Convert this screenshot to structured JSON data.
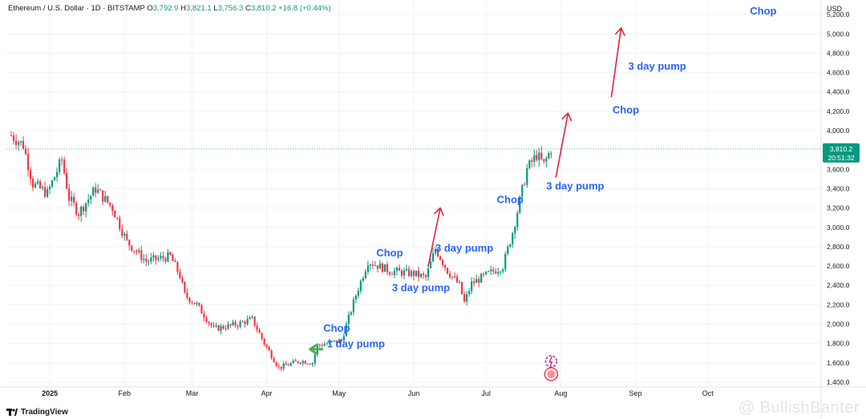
{
  "header": {
    "symbol": "Ethereum / U.S. Dollar · 1D · BITSTAMP",
    "o_label": "O",
    "o": "3,792.9",
    "h_label": "H",
    "h": "3,821.1",
    "l_label": "L",
    "l": "3,756.3",
    "c_label": "C",
    "c": "3,810.2",
    "change": "+16.8 (+0.44%)"
  },
  "currency": "USD",
  "price_badge": {
    "price": "3,810.2",
    "countdown": "20:51:32"
  },
  "branding": {
    "logo_text": "TradingView",
    "watermark": "@ BullishBanter"
  },
  "colors": {
    "up": "#089981",
    "down": "#f23645",
    "annotation_text": "#2962ff",
    "arrow_red": "#e3203a",
    "arrow_green": "#4caf50"
  },
  "chart_data": {
    "type": "candlestick",
    "yaxis_ticks": [
      "1,400.0",
      "1,600.0",
      "1,800.0",
      "2,000.0",
      "2,200.0",
      "2,400.0",
      "2,600.0",
      "2,800.0",
      "3,000.0",
      "3,200.0",
      "3,400.0",
      "3,600.0",
      "4,000.0",
      "4,200.0",
      "4,400.0",
      "4,600.0",
      "4,800.0",
      "5,000.0",
      "5,200.0"
    ],
    "ylim": [
      1350,
      5350
    ],
    "xaxis_ticks": [
      "2025",
      "Feb",
      "Mar",
      "Apr",
      "May",
      "Jun",
      "Jul",
      "Aug",
      "Sep",
      "Oct"
    ],
    "last_price": 3810.2,
    "price_path": [
      {
        "date": "2024-12-16",
        "price": 3950
      },
      {
        "date": "2024-12-21",
        "price": 3850
      },
      {
        "date": "2024-12-25",
        "price": 3450
      },
      {
        "date": "2024-12-31",
        "price": 3350
      },
      {
        "date": "2025-01-06",
        "price": 3700
      },
      {
        "date": "2025-01-09",
        "price": 3300
      },
      {
        "date": "2025-01-13",
        "price": 3150
      },
      {
        "date": "2025-01-20",
        "price": 3400
      },
      {
        "date": "2025-01-27",
        "price": 3200
      },
      {
        "date": "2025-02-02",
        "price": 2850
      },
      {
        "date": "2025-02-10",
        "price": 2650
      },
      {
        "date": "2025-02-20",
        "price": 2700
      },
      {
        "date": "2025-02-24",
        "price": 2500
      },
      {
        "date": "2025-02-26",
        "price": 2300
      },
      {
        "date": "2025-03-03",
        "price": 2200
      },
      {
        "date": "2025-03-10",
        "price": 1950
      },
      {
        "date": "2025-03-20",
        "price": 2000
      },
      {
        "date": "2025-03-26",
        "price": 2050
      },
      {
        "date": "2025-03-31",
        "price": 1800
      },
      {
        "date": "2025-04-06",
        "price": 1550
      },
      {
        "date": "2025-04-15",
        "price": 1620
      },
      {
        "date": "2025-04-20",
        "price": 1600
      },
      {
        "date": "2025-04-22",
        "price": 1780
      },
      {
        "date": "2025-05-02",
        "price": 1830
      },
      {
        "date": "2025-05-08",
        "price": 2300
      },
      {
        "date": "2025-05-13",
        "price": 2650
      },
      {
        "date": "2025-05-22",
        "price": 2550
      },
      {
        "date": "2025-06-01",
        "price": 2520
      },
      {
        "date": "2025-06-06",
        "price": 2480
      },
      {
        "date": "2025-06-10",
        "price": 2780
      },
      {
        "date": "2025-06-15",
        "price": 2550
      },
      {
        "date": "2025-06-20",
        "price": 2400
      },
      {
        "date": "2025-06-22",
        "price": 2220
      },
      {
        "date": "2025-06-25",
        "price": 2420
      },
      {
        "date": "2025-07-02",
        "price": 2520
      },
      {
        "date": "2025-07-08",
        "price": 2600
      },
      {
        "date": "2025-07-12",
        "price": 2950
      },
      {
        "date": "2025-07-18",
        "price": 3600
      },
      {
        "date": "2025-07-22",
        "price": 3750
      },
      {
        "date": "2025-07-25",
        "price": 3650
      },
      {
        "date": "2025-07-28",
        "price": 3810
      }
    ],
    "annotations": [
      {
        "text": "Chop",
        "date": "2025-10-24",
        "price": 5200
      },
      {
        "text": "3 day pump",
        "date": "2025-09-10",
        "price": 4630
      },
      {
        "text": "Chop",
        "date": "2025-08-28",
        "price": 4180
      },
      {
        "text": "3 day pump",
        "date": "2025-08-07",
        "price": 3390
      },
      {
        "text": "Chop",
        "date": "2025-07-11",
        "price": 3250
      },
      {
        "text": "3 day pump",
        "date": "2025-06-22",
        "price": 2750
      },
      {
        "text": "Chop",
        "date": "2025-05-22",
        "price": 2700
      },
      {
        "text": "3 day pump",
        "date": "2025-06-04",
        "price": 2340
      },
      {
        "text": "Chop",
        "date": "2025-04-30",
        "price": 1920
      },
      {
        "text": "1 day pump",
        "date": "2025-05-08",
        "price": 1760
      }
    ],
    "arrows": [
      {
        "color": "red",
        "from": {
          "date": "2025-08-22",
          "price": 4350
        },
        "to": {
          "date": "2025-08-26",
          "price": 5060
        }
      },
      {
        "color": "red",
        "from": {
          "date": "2025-07-30",
          "price": 3520
        },
        "to": {
          "date": "2025-08-04",
          "price": 4180
        }
      },
      {
        "color": "red",
        "from": {
          "date": "2025-06-07",
          "price": 2600
        },
        "to": {
          "date": "2025-06-12",
          "price": 3200
        }
      },
      {
        "color": "green",
        "from": {
          "date": "2025-04-24",
          "price": 1740
        },
        "to": {
          "date": "2025-04-19",
          "price": 1740
        }
      }
    ]
  }
}
